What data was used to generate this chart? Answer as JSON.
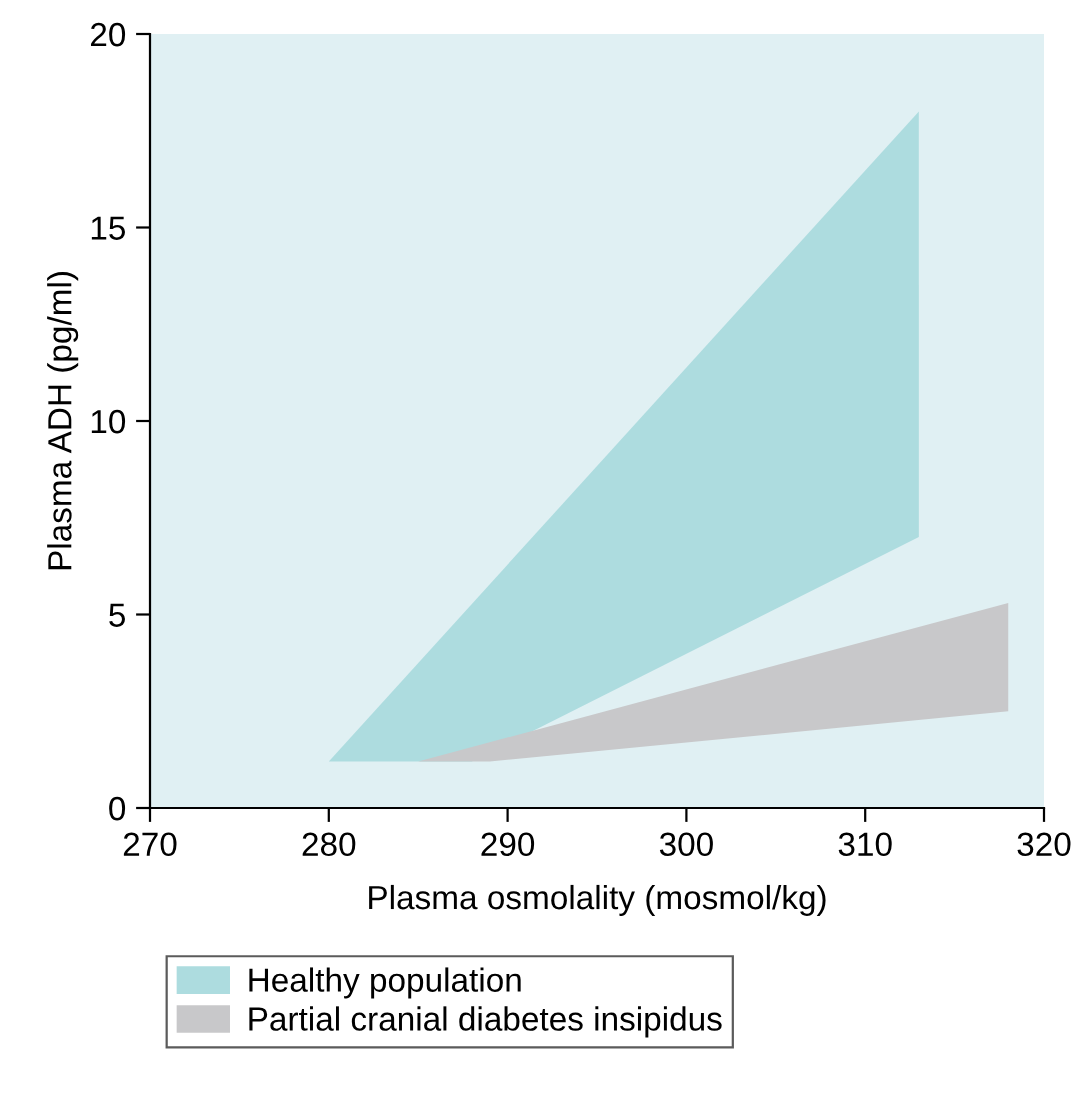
{
  "chart_data": {
    "type": "area",
    "xlabel": "Plasma osmolality (mosmol/kg)",
    "ylabel": "Plasma ADH (pg/ml)",
    "xlim": [
      270,
      320
    ],
    "xticks": [
      270,
      280,
      290,
      300,
      310,
      320
    ],
    "ylim": [
      0,
      20
    ],
    "yticks": [
      0,
      5,
      10,
      15,
      20
    ],
    "grid": false,
    "legend": "bottom",
    "series": [
      {
        "name": "Healthy population",
        "color": "#addcdf",
        "x": [
          280,
          313,
          313,
          288
        ],
        "values": [
          1.2,
          18,
          7,
          1.2
        ]
      },
      {
        "name": "Partial cranial diabetes insipidus",
        "color": "#c8c8ca",
        "x": [
          285,
          318,
          318,
          289
        ],
        "values": [
          1.2,
          5.3,
          2.5,
          1.2
        ]
      }
    ]
  }
}
